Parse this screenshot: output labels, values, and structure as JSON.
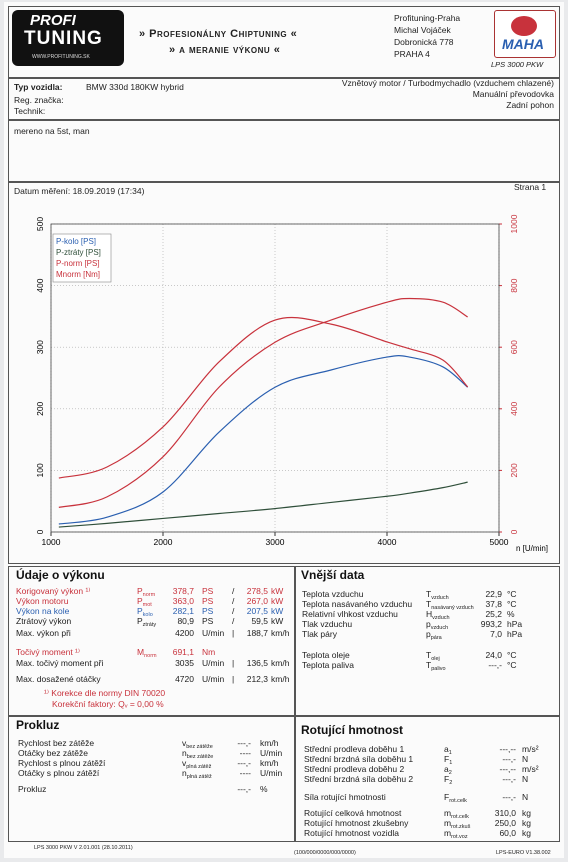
{
  "header": {
    "logo_top": "PROFI",
    "logo_bottom": "TUNING",
    "logo_url": "WWW.PROFITUNING.SK",
    "title_1": "» Profesionálny Chiptuning «",
    "title_2": "» a meranie výkonu «",
    "address": [
      "Profituning-Praha",
      "Michal Vojáček",
      "Dobronická 778",
      "PRAHA 4"
    ],
    "brand": "MAHA",
    "product": "LPS 3000 PKW"
  },
  "vehicle": {
    "type_label": "Typ vozidla:",
    "type_value": "BMW 330d 180KW hybrid",
    "reg_label": "Reg. značka:",
    "tech_label": "Technik:",
    "engine": "Vznětový motor / Turbodmychadlo (vzduchem chlazené)",
    "gearbox": "Manuální převodovka",
    "drive": "Zadní pohon",
    "comment": "mereno na 5st, man",
    "date": "Datum měření: 18.09.2019 (17:34)",
    "page": "Strana 1"
  },
  "chart_data": {
    "type": "line",
    "x_label": "n [U/min]",
    "legend": "upper left",
    "grid": true,
    "x": [
      1070,
      1500,
      2000,
      2500,
      3000,
      3500,
      4000,
      4200,
      4500,
      4720
    ],
    "xlim": [
      1000,
      5000
    ],
    "xticks": [
      1000,
      2000,
      3000,
      4000,
      5000
    ],
    "ylim": [
      0,
      500
    ],
    "yticks": [
      0,
      100,
      200,
      300,
      400,
      500
    ],
    "y2lim": [
      0,
      1000
    ],
    "y2ticks": [
      0,
      200,
      400,
      600,
      800,
      1000
    ],
    "y2_color": "#c8323c",
    "series": [
      {
        "name": "P-kolo [PS]",
        "color": "#2a5fb0",
        "values": [
          13,
          24,
          65,
          162,
          235,
          263,
          284,
          284,
          268,
          235
        ]
      },
      {
        "name": "P-ztráty [PS]",
        "color": "#2f4f3a",
        "values": [
          8,
          14,
          22,
          30,
          38,
          48,
          58,
          63,
          72,
          81
        ]
      },
      {
        "name": "P-norm [PS]",
        "color": "#c8323c",
        "values": [
          40,
          57,
          122,
          235,
          308,
          344,
          373,
          379,
          373,
          349
        ]
      },
      {
        "name": "Mnorm [Nm]",
        "color": "#c8323c",
        "axis": "y2",
        "values": [
          175,
          211,
          341,
          552,
          688,
          675,
          617,
          595,
          558,
          471
        ]
      }
    ]
  },
  "vykon": {
    "title": "Údaje o výkonu",
    "rows": [
      {
        "label": "Korigovaný výkon ¹⁾",
        "sym": {
          "main": "P",
          "sub": "norm"
        },
        "v1": "378,7",
        "u1": "PS",
        "sep": "/",
        "v2": "278,5",
        "u2": "kW",
        "color": "#c8323c"
      },
      {
        "label": "Výkon motoru",
        "sym": {
          "main": "P",
          "sub": "mot"
        },
        "v1": "363,0",
        "u1": "PS",
        "sep": "/",
        "v2": "267,0",
        "u2": "kW",
        "color": "#c8323c"
      },
      {
        "label": "Výkon na kole",
        "sym": {
          "main": "P",
          "sub": "kolo"
        },
        "v1": "282,1",
        "u1": "PS",
        "sep": "/",
        "v2": "207,5",
        "u2": "kW",
        "color": "#2a5fb0"
      },
      {
        "label": "Ztrátový výkon",
        "sym": {
          "main": "P",
          "sub": "ztráty"
        },
        "v1": "80,9",
        "u1": "PS",
        "sep": "/",
        "v2": "59,5",
        "u2": "kW",
        "color": "#222222"
      },
      {
        "label": "Max. výkon při",
        "v1": "4200",
        "u1": "U/min",
        "sep": "|",
        "v2": "188,7",
        "u2": "km/h",
        "color": "#222222"
      },
      {
        "label": "Točivý moment ¹⁾",
        "sym": {
          "main": "M",
          "sub": "norm"
        },
        "v1": "691,1",
        "u1": "Nm",
        "color": "#c8323c"
      },
      {
        "label": "Max. točivý moment při",
        "v1": "3035",
        "u1": "U/min",
        "sep": "|",
        "v2": "136,5",
        "u2": "km/h",
        "color": "#222222"
      },
      {
        "label": "Max. dosažené otáčky",
        "v1": "4720",
        "u1": "U/min",
        "sep": "|",
        "v2": "212,3",
        "u2": "km/h",
        "color": "#222222"
      }
    ],
    "note_1": "¹⁾ Korekce dle normy DIN 70020",
    "note_2": "Korekční faktory: Qᵥ =  0,00 %"
  },
  "vnejsi": {
    "title": "Vnější data",
    "rows": [
      {
        "label": "Teplota vzduchu",
        "sym": {
          "main": "T",
          "sub": "vzduch"
        },
        "v1": "22,9",
        "u1": "°C"
      },
      {
        "label": "Teplota nasávaného vzduchu",
        "sym": {
          "main": "T",
          "sub": "nasávaný vzduch"
        },
        "v1": "37,8",
        "u1": "°C"
      },
      {
        "label": "Relativní vlhkost vzduchu",
        "sym": {
          "main": "H",
          "sub": "vzduch"
        },
        "v1": "25,2",
        "u1": "%"
      },
      {
        "label": "Tlak vzduchu",
        "sym": {
          "main": "p",
          "sub": "vzduch"
        },
        "v1": "993,2",
        "u1": "hPa"
      },
      {
        "label": "Tlak páry",
        "sym": {
          "main": "p",
          "sub": "pára"
        },
        "v1": "7,0",
        "u1": "hPa"
      },
      {
        "label": "Teplota oleje",
        "sym": {
          "main": "T",
          "sub": "olej"
        },
        "v1": "24,0",
        "u1": "°C"
      },
      {
        "label": "Teplota paliva",
        "sym": {
          "main": "T",
          "sub": "palivo"
        },
        "v1": "---,-",
        "u1": "°C"
      }
    ]
  },
  "prokluz": {
    "title": "Prokluz",
    "rows": [
      {
        "label": "Rychlost bez zátěže",
        "sym": {
          "main": "v",
          "sub": "bez zátěže"
        },
        "v1": "---,-",
        "u1": "km/h"
      },
      {
        "label": "Otáčky bez zátěže",
        "sym": {
          "main": "n",
          "sub": "bez zátěže"
        },
        "v1": "----",
        "u1": "U/min"
      },
      {
        "label": "Rychlost s plnou zátěží",
        "sym": {
          "main": "v",
          "sub": "plná zátěž"
        },
        "v1": "---,-",
        "u1": "km/h"
      },
      {
        "label": "Otáčky s plnou zátěží",
        "sym": {
          "main": "n",
          "sub": "plná zátěž"
        },
        "v1": "----",
        "u1": "U/min"
      },
      {
        "label": "Prokluz",
        "v1": "---,-",
        "u1": "%"
      }
    ]
  },
  "rotujici": {
    "title": "Rotující hmotnost",
    "rows": [
      {
        "label": "Střední prodleva doběhu 1",
        "sym": {
          "main": "a",
          "sub": "1"
        },
        "v1": "---,--",
        "u1": "m/s²"
      },
      {
        "label": "Střední brzdná síla doběhu 1",
        "sym": {
          "main": "F",
          "sub": "1"
        },
        "v1": "---,-",
        "u1": "N"
      },
      {
        "label": "Střední prodleva doběhu 2",
        "sym": {
          "main": "a",
          "sub": "2"
        },
        "v1": "---,--",
        "u1": "m/s²"
      },
      {
        "label": "Střední brzdná síla doběhu 2",
        "sym": {
          "main": "F",
          "sub": "2"
        },
        "v1": "---,-",
        "u1": "N"
      },
      {
        "label": "Síla rotující hmotnosti",
        "sym": {
          "main": "F",
          "sub": "rot.celk"
        },
        "v1": "---,-",
        "u1": "N"
      },
      {
        "label": "Rotující celková hmotnost",
        "sym": {
          "main": "m",
          "sub": "rot.celk"
        },
        "v1": "310,0",
        "u1": "kg"
      },
      {
        "label": "Rotující hmotnost zkušebny",
        "sym": {
          "main": "m",
          "sub": "rot.zkuš"
        },
        "v1": "250,0",
        "u1": "kg"
      },
      {
        "label": "Rotující hmotnost vozidla",
        "sym": {
          "main": "m",
          "sub": "rot.voz"
        },
        "v1": "60,0",
        "u1": "kg"
      }
    ]
  },
  "footer": {
    "left": "LPS 3000 PKW V 2.01.001 (28.10.2011)",
    "center": "(100/000/0000/000/0000)",
    "right": "LPS-EURO V1.38.002"
  }
}
